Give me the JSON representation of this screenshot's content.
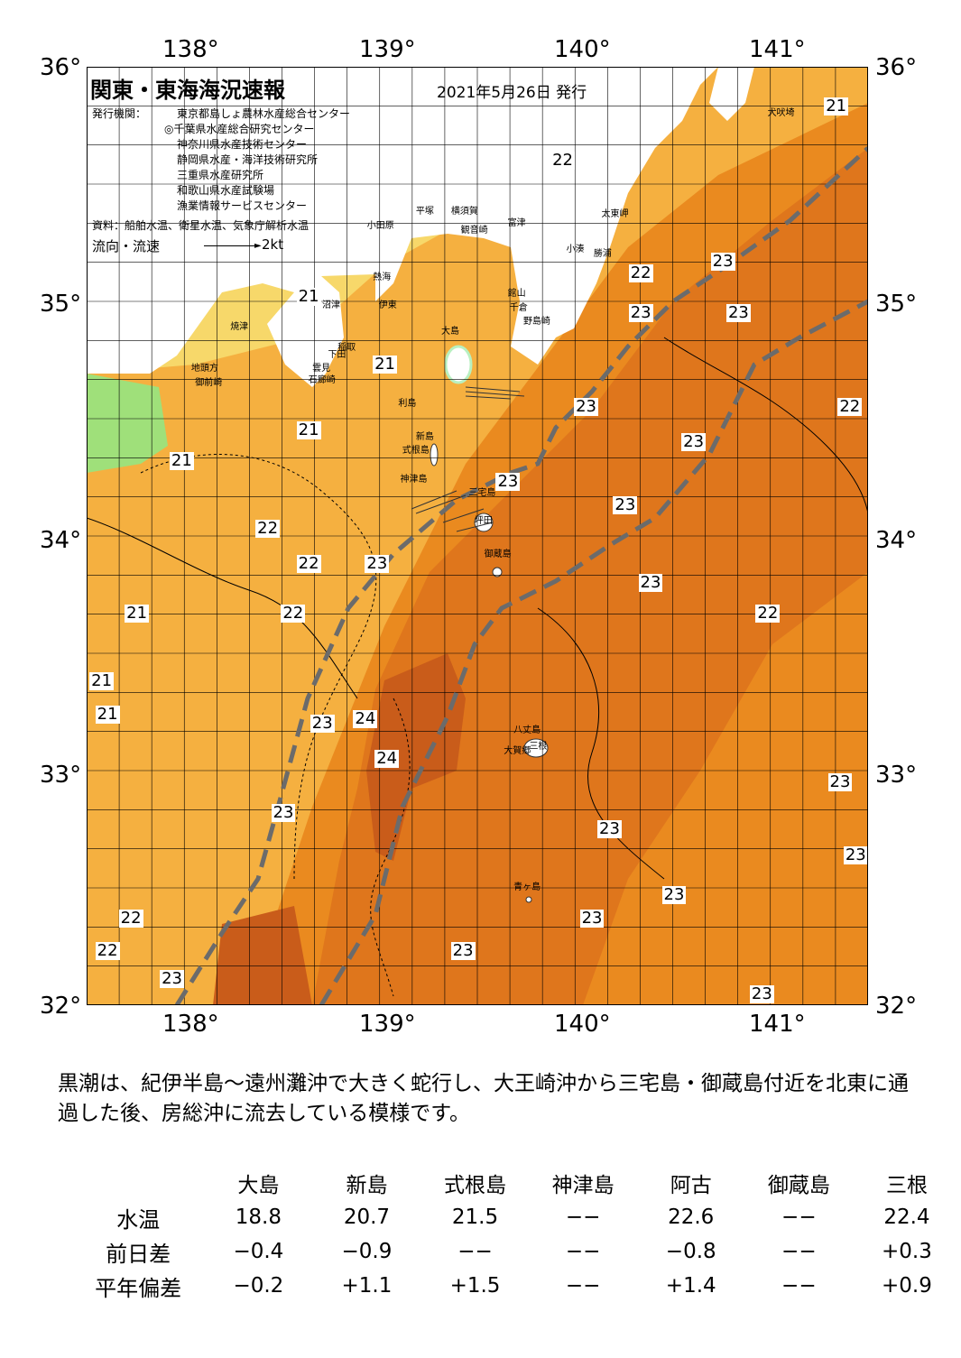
{
  "header": {
    "title": "関東・東海海況速報",
    "date": "2021年5月26日 発行",
    "issuer_label": "発行機関：",
    "issuers": [
      "東京都島しょ農林水産総合センター",
      "◎千葉県水産総合研究センター",
      "神奈川県水産技術センター",
      "静岡県水産・海洋技術研究所",
      "三重県水産研究所",
      "和歌山県水産試験場",
      "漁業情報サービスセンター"
    ],
    "source": "資料：船舶水温、衛星水温、気象庁解析水温",
    "flow_label": "流向・流速",
    "flow_unit": "2kt"
  },
  "axes": {
    "lon_labels": [
      "138°",
      "139°",
      "140°",
      "141°"
    ],
    "lat_labels": [
      "36°",
      "35°",
      "34°",
      "33°",
      "32°"
    ],
    "lon_range": [
      137.5,
      141.5
    ],
    "lat_range": [
      32,
      36
    ]
  },
  "colors": {
    "t21": "#f7d86a",
    "t22": "#f5b040",
    "t23": "#ea8a1f",
    "t24": "#d8671a",
    "t25": "#c4501a",
    "land": "#ffffff",
    "shelf": "#fae68c",
    "kuroshio": "#6b6b6b"
  },
  "temp_labels": [
    {
      "text": "21",
      "lon": 141.33,
      "lat": 35.83
    },
    {
      "text": "22",
      "lon": 139.93,
      "lat": 35.6
    },
    {
      "text": "22",
      "lon": 140.33,
      "lat": 35.12
    },
    {
      "text": "23",
      "lon": 140.75,
      "lat": 35.17
    },
    {
      "text": "23",
      "lon": 140.33,
      "lat": 34.95
    },
    {
      "text": "23",
      "lon": 140.83,
      "lat": 34.95
    },
    {
      "text": "21",
      "lon": 138.63,
      "lat": 35.02
    },
    {
      "text": "21",
      "lon": 139.02,
      "lat": 34.73
    },
    {
      "text": "23",
      "lon": 140.05,
      "lat": 34.55
    },
    {
      "text": "22",
      "lon": 141.4,
      "lat": 34.55
    },
    {
      "text": "21",
      "lon": 138.63,
      "lat": 34.45
    },
    {
      "text": "23",
      "lon": 140.6,
      "lat": 34.4
    },
    {
      "text": "21",
      "lon": 137.98,
      "lat": 34.32
    },
    {
      "text": "23",
      "lon": 139.65,
      "lat": 34.23
    },
    {
      "text": "23",
      "lon": 140.25,
      "lat": 34.13
    },
    {
      "text": "22",
      "lon": 138.42,
      "lat": 34.03
    },
    {
      "text": "22",
      "lon": 138.63,
      "lat": 33.88
    },
    {
      "text": "23",
      "lon": 138.98,
      "lat": 33.88
    },
    {
      "text": "23",
      "lon": 140.38,
      "lat": 33.8
    },
    {
      "text": "21",
      "lon": 137.75,
      "lat": 33.67
    },
    {
      "text": "22",
      "lon": 138.55,
      "lat": 33.67
    },
    {
      "text": "22",
      "lon": 140.98,
      "lat": 33.67
    },
    {
      "text": "21",
      "lon": 137.57,
      "lat": 33.38
    },
    {
      "text": "21",
      "lon": 137.6,
      "lat": 33.24
    },
    {
      "text": "23",
      "lon": 138.7,
      "lat": 33.2
    },
    {
      "text": "24",
      "lon": 138.92,
      "lat": 33.22
    },
    {
      "text": "24",
      "lon": 139.03,
      "lat": 33.05
    },
    {
      "text": "23",
      "lon": 141.35,
      "lat": 32.95
    },
    {
      "text": "23",
      "lon": 138.5,
      "lat": 32.82
    },
    {
      "text": "23",
      "lon": 140.17,
      "lat": 32.75
    },
    {
      "text": "23",
      "lon": 141.43,
      "lat": 32.64
    },
    {
      "text": "23",
      "lon": 140.5,
      "lat": 32.47
    },
    {
      "text": "22",
      "lon": 137.72,
      "lat": 32.37
    },
    {
      "text": "23",
      "lon": 140.08,
      "lat": 32.37
    },
    {
      "text": "22",
      "lon": 137.6,
      "lat": 32.23
    },
    {
      "text": "23",
      "lon": 139.42,
      "lat": 32.23
    },
    {
      "text": "23",
      "lon": 137.93,
      "lat": 32.11
    },
    {
      "text": "23",
      "lon": 140.95,
      "lat": 32.0
    }
  ],
  "place_labels": [
    {
      "text": "犬吠埼",
      "lon": 141.05,
      "lat": 35.8
    },
    {
      "text": "太東岬",
      "lon": 140.2,
      "lat": 35.37
    },
    {
      "text": "勝浦",
      "lon": 140.16,
      "lat": 35.2
    },
    {
      "text": "小湊",
      "lon": 140.02,
      "lat": 35.22
    },
    {
      "text": "館山",
      "lon": 139.72,
      "lat": 35.03
    },
    {
      "text": "千倉",
      "lon": 139.73,
      "lat": 34.97
    },
    {
      "text": "野島崎",
      "lon": 139.8,
      "lat": 34.91
    },
    {
      "text": "富津",
      "lon": 139.72,
      "lat": 35.33
    },
    {
      "text": "平塚",
      "lon": 139.25,
      "lat": 35.38
    },
    {
      "text": "横須賀",
      "lon": 139.43,
      "lat": 35.38
    },
    {
      "text": "観音崎",
      "lon": 139.48,
      "lat": 35.3
    },
    {
      "text": "小田原",
      "lon": 139.0,
      "lat": 35.32
    },
    {
      "text": "熱海",
      "lon": 139.03,
      "lat": 35.1
    },
    {
      "text": "伊東",
      "lon": 139.06,
      "lat": 34.98
    },
    {
      "text": "沼津",
      "lon": 138.77,
      "lat": 34.98
    },
    {
      "text": "焼津",
      "lon": 138.3,
      "lat": 34.89
    },
    {
      "text": "稲取",
      "lon": 138.85,
      "lat": 34.8
    },
    {
      "text": "下田",
      "lon": 138.8,
      "lat": 34.77
    },
    {
      "text": "地頭方",
      "lon": 138.1,
      "lat": 34.71
    },
    {
      "text": "雲見",
      "lon": 138.72,
      "lat": 34.71
    },
    {
      "text": "御前崎",
      "lon": 138.12,
      "lat": 34.65
    },
    {
      "text": "石廊崎",
      "lon": 138.7,
      "lat": 34.66
    },
    {
      "text": "大島",
      "lon": 139.38,
      "lat": 34.87
    },
    {
      "text": "利島",
      "lon": 139.16,
      "lat": 34.56
    },
    {
      "text": "新島",
      "lon": 139.25,
      "lat": 34.42
    },
    {
      "text": "式根島",
      "lon": 139.18,
      "lat": 34.36
    },
    {
      "text": "神津島",
      "lon": 139.17,
      "lat": 34.24
    },
    {
      "text": "三宅島",
      "lon": 139.52,
      "lat": 34.18
    },
    {
      "text": "坪田",
      "lon": 139.55,
      "lat": 34.06
    },
    {
      "text": "御蔵島",
      "lon": 139.6,
      "lat": 33.92
    },
    {
      "text": "八丈島",
      "lon": 139.75,
      "lat": 33.17
    },
    {
      "text": "三根",
      "lon": 139.83,
      "lat": 33.1
    },
    {
      "text": "大賀郷",
      "lon": 139.7,
      "lat": 33.08
    },
    {
      "text": "青ヶ島",
      "lon": 139.75,
      "lat": 32.5
    }
  ],
  "description": "黒潮は、紀伊半島～遠州灘沖で大きく蛇行し、大王崎沖から三宅島・御蔵島付近を北東に通過した後、房総沖に流去している模様です。",
  "table": {
    "columns": [
      "大島",
      "新島",
      "式根島",
      "神津島",
      "阿古",
      "御蔵島",
      "三根"
    ],
    "rows": [
      {
        "label": "水温",
        "values": [
          "18.8",
          "20.7",
          "21.5",
          "−−",
          "22.6",
          "−−",
          "22.4"
        ]
      },
      {
        "label": "前日差",
        "values": [
          "−0.4",
          "−0.9",
          "−−",
          "−−",
          "−0.8",
          "−−",
          "+0.3"
        ]
      },
      {
        "label": "平年偏差",
        "values": [
          "−0.2",
          "+1.1",
          "+1.5",
          "−−",
          "+1.4",
          "−−",
          "+0.9"
        ]
      }
    ]
  }
}
